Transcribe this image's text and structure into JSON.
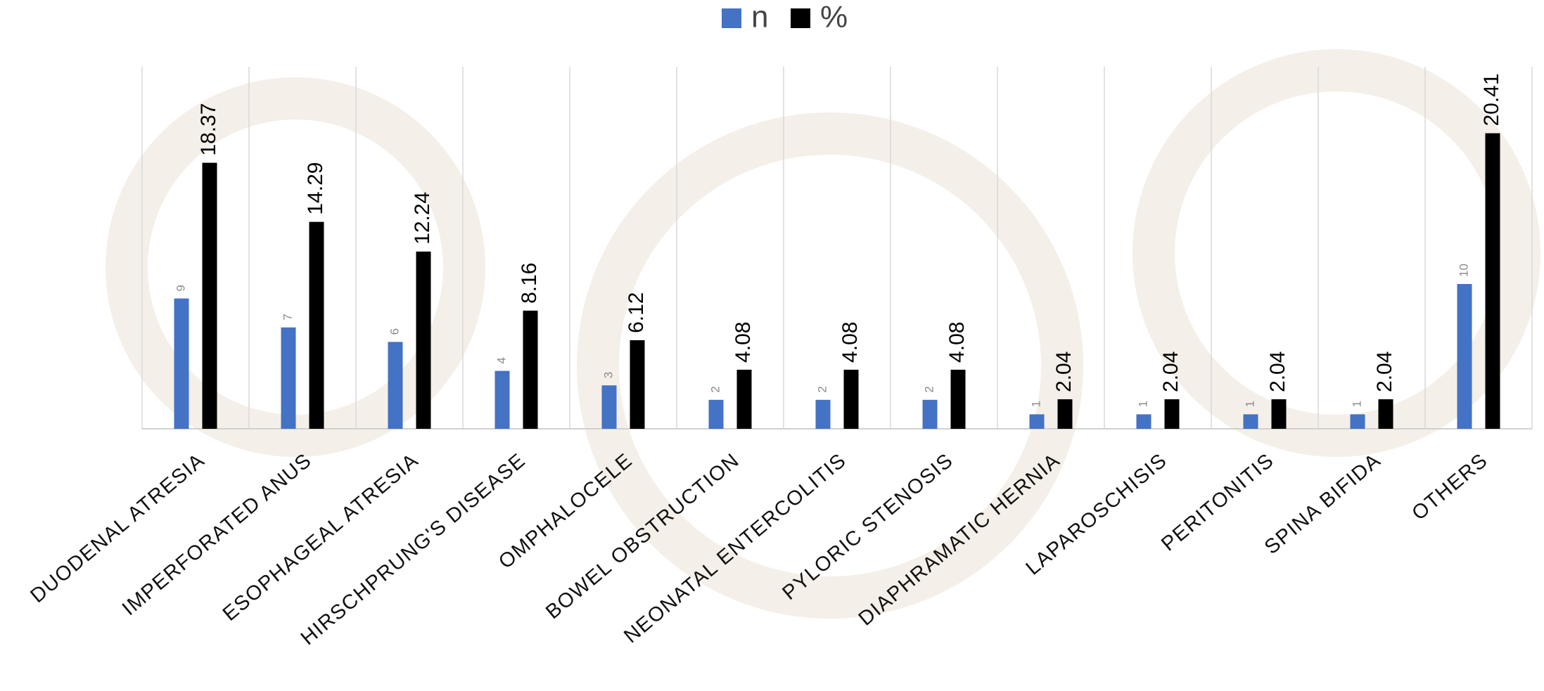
{
  "chart_data": {
    "type": "bar",
    "categories": [
      "DUODENAL ATRESIA",
      "IMPERFORATED ANUS",
      "ESOPHAGEAL ATRESIA",
      "HIRSCHPRUNG'S DISEASE",
      "OMPHALOCELE",
      "BOWEL OBSTRUCTION",
      "NEONATAL ENTERCOLITIS",
      "PYLORIC STENOSIS",
      "DIAPHRAMATIC HERNIA",
      "LAPAROSCHISIS",
      "PERITONITIS",
      "SPINA BIFIDA",
      "OTHERS"
    ],
    "series": [
      {
        "name": "n",
        "color": "#4472c4",
        "values": [
          9,
          7,
          6,
          4,
          3,
          2,
          2,
          2,
          1,
          1,
          1,
          1,
          10
        ]
      },
      {
        "name": "%",
        "color": "#000000",
        "values": [
          18.37,
          14.29,
          12.24,
          8.16,
          6.12,
          4.08,
          4.08,
          4.08,
          2.04,
          2.04,
          2.04,
          2.04,
          20.41
        ]
      }
    ],
    "ylim": [
      0,
      25
    ]
  }
}
